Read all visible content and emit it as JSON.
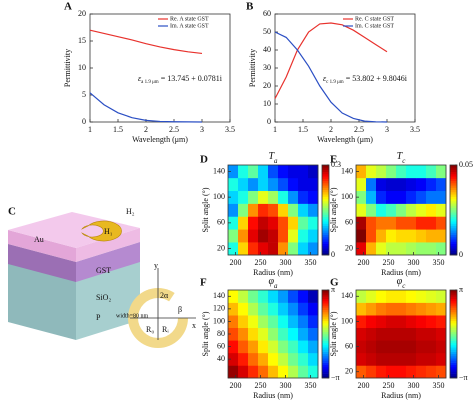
{
  "chart_data": [
    {
      "type": "line",
      "panel": "A",
      "xlabel": "Wavelength (μm)",
      "ylabel": "Permittivity",
      "xlim": [
        1,
        3.5
      ],
      "xticks": [
        1,
        1.5,
        2,
        2.5,
        3,
        3.5
      ],
      "ylim": [
        0,
        20
      ],
      "yticks": [
        0,
        5,
        10,
        15,
        20
      ],
      "legend": "upper right",
      "x": [
        1,
        1.25,
        1.5,
        1.75,
        2,
        2.25,
        2.5,
        2.75,
        3
      ],
      "series": [
        {
          "name": "Re. A state GST",
          "color": "#e8322d",
          "values": [
            17,
            16.4,
            15.8,
            15.2,
            14.5,
            13.9,
            13.4,
            13.0,
            12.7
          ]
        },
        {
          "name": "Im. A state GST",
          "color": "#2b4fc4",
          "values": [
            5.4,
            3.2,
            1.7,
            0.8,
            0.3,
            0.1,
            0.05,
            0.02,
            0
          ]
        }
      ],
      "annotation": {
        "symbol": "ε",
        "sub": "a 1.9 μm",
        "text": " = 13.745 + 0.0781i"
      }
    },
    {
      "type": "line",
      "panel": "B",
      "xlabel": "Wavelength (μm)",
      "ylabel": "Permittivity",
      "xlim": [
        1,
        3.5
      ],
      "xticks": [
        1,
        1.5,
        2,
        2.5,
        3,
        3.5
      ],
      "ylim": [
        0,
        60
      ],
      "yticks": [
        0,
        10,
        20,
        30,
        40,
        50,
        60
      ],
      "legend": "upper right",
      "x": [
        1,
        1.2,
        1.4,
        1.6,
        1.8,
        2,
        2.2,
        2.4,
        2.6,
        2.8,
        3
      ],
      "series": [
        {
          "name": "Re. C state GST",
          "color": "#e8322d",
          "values": [
            13,
            25,
            40,
            50,
            54.5,
            55,
            54,
            51,
            47,
            43,
            39
          ]
        },
        {
          "name": "Im. C state GST",
          "color": "#2b4fc4",
          "values": [
            50,
            47,
            40,
            31,
            20,
            11,
            5,
            2,
            0.5,
            0.1,
            0
          ]
        }
      ],
      "annotation": {
        "symbol": "ε",
        "sub": "c 1.9 μm",
        "text": " = 53.802 + 9.8046i"
      }
    },
    {
      "type": "heatmap",
      "panel": "D",
      "title": "T",
      "title_sub": "a",
      "xlabel": "Radius (nm)",
      "ylabel": "Split angle (°)",
      "colormap": "jet",
      "xlim": [
        185,
        365
      ],
      "xticks": [
        200,
        250,
        300,
        350
      ],
      "ylim": [
        10,
        150
      ],
      "yticks": [
        20,
        60,
        100,
        140
      ],
      "clim": [
        0,
        0.3
      ],
      "cticks": [
        0,
        0.3
      ],
      "values": [
        [
          0.12,
          0.2,
          0.25,
          0.27,
          0.28,
          0.22,
          0.15,
          0.1,
          0.08
        ],
        [
          0.15,
          0.22,
          0.27,
          0.29,
          0.28,
          0.24,
          0.18,
          0.12,
          0.1
        ],
        [
          0.12,
          0.2,
          0.26,
          0.28,
          0.27,
          0.24,
          0.2,
          0.14,
          0.12
        ],
        [
          0.08,
          0.15,
          0.22,
          0.25,
          0.24,
          0.2,
          0.15,
          0.1,
          0.08
        ],
        [
          0.1,
          0.12,
          0.15,
          0.18,
          0.16,
          0.12,
          0.08,
          0.05,
          0.04
        ],
        [
          0.12,
          0.1,
          0.08,
          0.1,
          0.08,
          0.06,
          0.04,
          0.03,
          0.03
        ],
        [
          0.08,
          0.12,
          0.14,
          0.1,
          0.06,
          0.04,
          0.03,
          0.03,
          0.02
        ]
      ]
    },
    {
      "type": "heatmap",
      "panel": "E",
      "title": "T",
      "title_sub": "c",
      "xlabel": "Radius (nm)",
      "ylabel": "Split angle (°)",
      "colormap": "jet",
      "xlim": [
        185,
        365
      ],
      "xticks": [
        200,
        250,
        300,
        350
      ],
      "ylim": [
        10,
        150
      ],
      "yticks": [
        20,
        60,
        100,
        140
      ],
      "clim": [
        0,
        0.05
      ],
      "cticks": [
        0,
        0.05
      ],
      "values": [
        [
          0.045,
          0.035,
          0.03,
          0.028,
          0.028,
          0.027,
          0.026,
          0.026,
          0.025
        ],
        [
          0.05,
          0.04,
          0.035,
          0.032,
          0.033,
          0.033,
          0.034,
          0.035,
          0.035
        ],
        [
          0.048,
          0.04,
          0.038,
          0.038,
          0.04,
          0.04,
          0.042,
          0.042,
          0.04
        ],
        [
          0.03,
          0.025,
          0.02,
          0.022,
          0.025,
          0.028,
          0.03,
          0.032,
          0.03
        ],
        [
          0.025,
          0.015,
          0.008,
          0.006,
          0.006,
          0.008,
          0.01,
          0.012,
          0.012
        ],
        [
          0.03,
          0.012,
          0.005,
          0.004,
          0.004,
          0.005,
          0.006,
          0.008,
          0.01
        ],
        [
          0.035,
          0.03,
          0.028,
          0.025,
          0.022,
          0.02,
          0.02,
          0.022,
          0.025
        ]
      ]
    },
    {
      "type": "heatmap",
      "panel": "F",
      "title": "φ",
      "title_sub": "a",
      "xlabel": "Radius (nm)",
      "ylabel": "Split angle (°)",
      "colormap": "jet",
      "xlim": [
        185,
        365
      ],
      "xticks": [
        200,
        250,
        300,
        350
      ],
      "ylim": [
        10,
        150
      ],
      "yticks": [
        40,
        60,
        80,
        100,
        120,
        140
      ],
      "clim": [
        -3.14159,
        3.14159
      ],
      "cticks": [
        {
          "value": -3.14159,
          "label": "−π"
        },
        {
          "value": 3.14159,
          "label": "π"
        }
      ],
      "values": [
        [
          3.0,
          2.6,
          2.1,
          1.7,
          1.2,
          0.8,
          0.3,
          -0.2,
          -0.6
        ],
        [
          2.6,
          2.2,
          1.7,
          1.3,
          0.8,
          0.4,
          -0.1,
          -0.5,
          -1.0
        ],
        [
          2.3,
          1.8,
          1.4,
          0.9,
          0.5,
          0.0,
          -0.4,
          -0.9,
          -1.3
        ],
        [
          1.9,
          1.5,
          1.0,
          0.6,
          0.1,
          -0.4,
          -0.8,
          -1.3,
          -1.7
        ],
        [
          1.6,
          1.1,
          0.7,
          0.2,
          -0.2,
          -0.7,
          -1.2,
          -1.6,
          -2.1
        ],
        [
          1.2,
          0.8,
          0.3,
          -0.2,
          -0.6,
          -1.1,
          -1.5,
          -2.0,
          -2.4
        ],
        [
          0.8,
          0.4,
          -0.1,
          -0.5,
          -1.0,
          -1.4,
          -1.9,
          -2.3,
          -2.8
        ]
      ]
    },
    {
      "type": "heatmap",
      "panel": "G",
      "title": "φ",
      "title_sub": "c",
      "xlabel": "Radius (nm)",
      "ylabel": "Split angle (°)",
      "colormap": "jet",
      "xlim": [
        185,
        365
      ],
      "xticks": [
        200,
        250,
        300,
        350
      ],
      "ylim": [
        10,
        150
      ],
      "yticks": [
        20,
        60,
        100,
        140
      ],
      "clim": [
        -3.14159,
        3.14159
      ],
      "cticks": [
        {
          "value": -3.14159,
          "label": "−π"
        },
        {
          "value": 3.14159,
          "label": "π"
        }
      ],
      "values": [
        [
          1.8,
          2.0,
          2.2,
          2.3,
          2.3,
          2.2,
          2.1,
          2.0,
          1.9
        ],
        [
          2.6,
          2.7,
          2.8,
          2.8,
          2.8,
          2.8,
          2.7,
          2.7,
          2.6
        ],
        [
          2.7,
          2.8,
          2.9,
          2.9,
          2.9,
          2.9,
          2.8,
          2.8,
          2.7
        ],
        [
          2.6,
          2.7,
          2.8,
          2.8,
          2.8,
          2.8,
          2.7,
          2.7,
          2.6
        ],
        [
          2.2,
          2.4,
          2.5,
          2.6,
          2.6,
          2.5,
          2.4,
          2.3,
          2.2
        ],
        [
          1.2,
          1.4,
          1.6,
          1.7,
          1.7,
          1.6,
          1.5,
          1.4,
          1.3
        ],
        [
          0.4,
          0.6,
          0.8,
          0.9,
          0.9,
          0.8,
          0.7,
          0.6,
          0.5
        ]
      ]
    }
  ],
  "diagram": {
    "panel": "C",
    "au": "Au",
    "h1": "H₁",
    "h2": "H₂",
    "gst": "GST",
    "sio2": "SiO₂",
    "p": "P",
    "y": "y",
    "x": "x",
    "alpha": "2α",
    "beta": "β",
    "ro": "R₀",
    "ri": "Rᵢ",
    "width": "width=80 nm"
  }
}
